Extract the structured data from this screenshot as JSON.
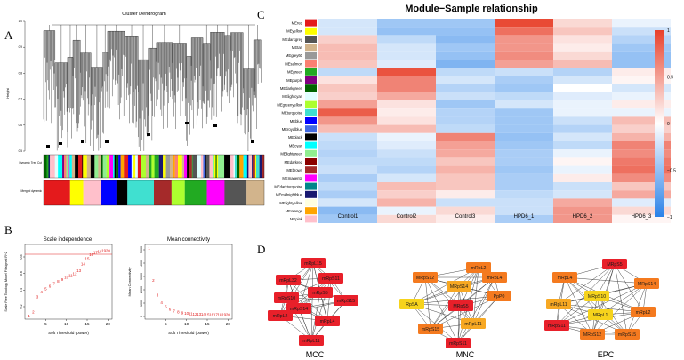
{
  "figure": {
    "panel_a": {
      "letter": "A",
      "title": "Cluster Dendrogram",
      "ylabel": "Height",
      "yticks": [
        "0.5",
        "0.6",
        "0.7",
        "0.8",
        "0.9",
        "1.0"
      ],
      "row_labels": [
        "Dynamic Tree Cut",
        "Merged dynamic"
      ]
    },
    "panel_b": {
      "letter": "B",
      "left_plot": {
        "title": "Scale independence",
        "xlabel": "Soft Threshold (power)",
        "ylabel": "Scale Free Topology Model Fit,signed R^2",
        "xticks": [
          "5",
          "10",
          "15",
          "20"
        ],
        "yticks": [
          "0.2",
          "0.4",
          "0.6",
          "0.8"
        ]
      },
      "right_plot": {
        "title": "Mean connectivity",
        "xlabel": "Soft Threshold (power)",
        "ylabel": "Mean Connectivity",
        "xticks": [
          "5",
          "10",
          "15",
          "20"
        ],
        "yticks": [
          "0",
          "1000",
          "2000",
          "3000",
          "4000",
          "5000"
        ]
      }
    },
    "panel_c": {
      "letter": "C",
      "title": "Module−Sample relationship",
      "modules": [
        "MEred",
        "MEyellow",
        "MEdarkgrey",
        "MEtan",
        "MEgrey60",
        "MEsalmon",
        "MEgreen",
        "MEpurple",
        "MEdarkgreen",
        "MElightcyan",
        "MEgreenyellow",
        "MEturquoise",
        "MEblue",
        "MEroyalblue",
        "MEblack",
        "MEcyan",
        "MElightgreen",
        "MEdarkred",
        "MEbrown",
        "MEmagenta",
        "MEdarkturquoise",
        "MEmidnightblue",
        "MElightyellow",
        "MEorange",
        "MEpink"
      ],
      "module_colors": [
        "#e41a1c",
        "#ffff00",
        "#555555",
        "#d2b48c",
        "#999999",
        "#fa8072",
        "#22aa22",
        "#800080",
        "#006400",
        "#e0ffff",
        "#adff2f",
        "#40e0d0",
        "#0000ff",
        "#4169e1",
        "#000000",
        "#00ffff",
        "#90ee90",
        "#8b0000",
        "#a52a2a",
        "#ff00ff",
        "#00868b",
        "#191970",
        "#ffffe0",
        "#ffa500",
        "#ffc0cb"
      ],
      "samples": [
        "Control1",
        "Control2",
        "Control3",
        "HPD6_1",
        "HPD6_2",
        "HPD6_3"
      ],
      "colorbar_ticks": [
        "1",
        "0.5",
        "0",
        "−0.5",
        "−1"
      ],
      "matrix": [
        [
          -0.2,
          -0.45,
          -0.45,
          0.95,
          0.2,
          -0.1
        ],
        [
          -0.2,
          -0.5,
          -0.5,
          0.75,
          0.3,
          -0.25
        ],
        [
          0.25,
          -0.3,
          -0.55,
          0.55,
          0.15,
          -0.35
        ],
        [
          0.35,
          -0.2,
          -0.45,
          0.55,
          0.1,
          -0.45
        ],
        [
          0.35,
          -0.2,
          -0.5,
          0.6,
          0.2,
          -0.5
        ],
        [
          0.3,
          -0.15,
          -0.6,
          0.5,
          0.35,
          -0.5
        ],
        [
          -0.3,
          0.9,
          -0.3,
          -0.25,
          -0.35,
          0.1
        ],
        [
          0.15,
          0.65,
          -0.2,
          -0.4,
          -0.2,
          0.05
        ],
        [
          0.3,
          0.65,
          -0.35,
          -0.45,
          0.0,
          -0.2
        ],
        [
          0.25,
          0.45,
          -0.25,
          -0.3,
          -0.15,
          -0.1
        ],
        [
          0.5,
          0.15,
          -0.45,
          -0.2,
          -0.1,
          0.1
        ],
        [
          0.85,
          0.1,
          -0.35,
          -0.45,
          -0.1,
          -0.1
        ],
        [
          0.55,
          0.15,
          -0.35,
          -0.45,
          -0.25,
          0.35
        ],
        [
          0.35,
          0.35,
          -0.3,
          -0.45,
          -0.35,
          0.25
        ],
        [
          -0.25,
          -0.1,
          0.65,
          -0.5,
          -0.2,
          0.4
        ],
        [
          -0.3,
          -0.15,
          0.5,
          -0.45,
          -0.3,
          0.65
        ],
        [
          -0.35,
          -0.25,
          0.45,
          -0.4,
          -0.1,
          0.6
        ],
        [
          -0.3,
          -0.3,
          0.3,
          -0.4,
          0.05,
          0.7
        ],
        [
          -0.25,
          -0.35,
          0.4,
          -0.45,
          -0.1,
          0.75
        ],
        [
          -0.4,
          -0.2,
          0.3,
          -0.4,
          0.1,
          0.6
        ],
        [
          -0.3,
          0.35,
          0.3,
          -0.4,
          -0.25,
          0.3
        ],
        [
          -0.4,
          0.25,
          0.1,
          -0.3,
          -0.2,
          0.45
        ],
        [
          -0.2,
          0.4,
          -0.25,
          -0.25,
          0.45,
          -0.15
        ],
        [
          -0.55,
          -0.1,
          0.2,
          -0.25,
          0.55,
          0.2
        ],
        [
          -0.45,
          0.2,
          0.1,
          -0.4,
          0.55,
          0.05
        ]
      ]
    },
    "panel_d": {
      "letter": "D",
      "networks": [
        {
          "label": "MCC",
          "nodes": [
            {
              "name": "mRpL15",
              "color": "#e8202a"
            },
            {
              "name": "mRpL32",
              "color": "#e8202a"
            },
            {
              "name": "mRpS11",
              "color": "#e8202a"
            },
            {
              "name": "mRpS10",
              "color": "#e8202a"
            },
            {
              "name": "mRpS5",
              "color": "#e8202a"
            },
            {
              "name": "mRpS14",
              "color": "#e8202a"
            },
            {
              "name": "mRpS15",
              "color": "#e8202a"
            },
            {
              "name": "mRpL2",
              "color": "#e8202a"
            },
            {
              "name": "mRpL4",
              "color": "#e8202a"
            },
            {
              "name": "mRpL11",
              "color": "#e8202a"
            }
          ]
        },
        {
          "label": "MNC",
          "nodes": [
            {
              "name": "mRpL2",
              "color": "#f47a1f"
            },
            {
              "name": "MRpS12",
              "color": "#f47a1f"
            },
            {
              "name": "mRpL4",
              "color": "#f47a1f"
            },
            {
              "name": "MRpS14",
              "color": "#f7a823"
            },
            {
              "name": "RpSA",
              "color": "#f6d31c"
            },
            {
              "name": "MRpS5",
              "color": "#e8202a"
            },
            {
              "name": "PpP0",
              "color": "#f47a1f"
            },
            {
              "name": "mRpS15",
              "color": "#f47a1f"
            },
            {
              "name": "mRpL11",
              "color": "#f7a823"
            },
            {
              "name": "mRpS11",
              "color": "#e8202a"
            }
          ]
        },
        {
          "label": "EPC",
          "nodes": [
            {
              "name": "MRpS5",
              "color": "#e8202a"
            },
            {
              "name": "mRpL4",
              "color": "#f47a1f"
            },
            {
              "name": "MRpS14",
              "color": "#f47a1f"
            },
            {
              "name": "MRpS10",
              "color": "#f6d31c"
            },
            {
              "name": "mRpL11",
              "color": "#f7a823"
            },
            {
              "name": "MRpL1",
              "color": "#f6d31c"
            },
            {
              "name": "mRpL2",
              "color": "#f47a1f"
            },
            {
              "name": "mRpS11",
              "color": "#e8202a"
            },
            {
              "name": "MRpS12",
              "color": "#f47a1f"
            },
            {
              "name": "mRpS15",
              "color": "#f47a1f"
            }
          ]
        }
      ]
    }
  }
}
